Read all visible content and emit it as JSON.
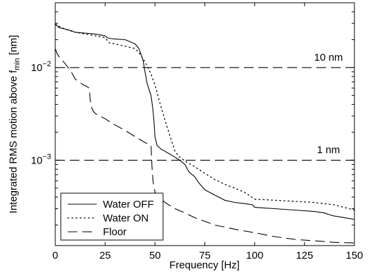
{
  "chart_data": {
    "type": "line",
    "title": "",
    "xlabel": "Frequency [Hz]",
    "ylabel_main": "Integrated RMS motion above f",
    "ylabel_sub": "min",
    "ylabel_unit": " [nm]",
    "x_scale": "linear",
    "y_scale": "log",
    "xlim": [
      0,
      150
    ],
    "ylim": [
      0.00012,
      0.05
    ],
    "x_ticks": [
      0,
      25,
      50,
      75,
      100,
      125,
      150
    ],
    "x_tick_labels": [
      "0",
      "25",
      "50",
      "75",
      "100",
      "125",
      "150"
    ],
    "y_ticks": [
      0.01,
      0.001
    ],
    "y_tick_labels": [
      {
        "base": "10",
        "exp": "−2"
      },
      {
        "base": "10",
        "exp": "−3"
      }
    ],
    "grid": false,
    "legend_position": "bottom-left",
    "series": [
      {
        "name": "Water OFF",
        "style": "solid",
        "x": [
          0,
          1,
          2,
          5,
          8,
          10,
          15,
          20,
          25,
          26,
          28,
          30,
          35,
          40,
          42,
          44,
          45,
          46,
          47,
          48,
          49,
          49.5,
          50,
          51,
          53,
          55,
          57,
          60,
          63,
          65,
          67,
          70,
          72,
          75,
          80,
          85,
          90,
          95,
          99,
          100,
          110,
          120,
          130,
          135,
          137,
          140,
          145,
          150
        ],
        "y": [
          0.03,
          0.028,
          0.027,
          0.026,
          0.025,
          0.024,
          0.0235,
          0.023,
          0.022,
          0.021,
          0.0205,
          0.0203,
          0.02,
          0.018,
          0.016,
          0.012,
          0.009,
          0.0068,
          0.0058,
          0.005,
          0.0035,
          0.0026,
          0.0018,
          0.00145,
          0.00132,
          0.00125,
          0.00118,
          0.00108,
          0.00098,
          0.0009,
          0.00075,
          0.00066,
          0.00057,
          0.00048,
          0.00042,
          0.00037,
          0.00035,
          0.00034,
          0.00033,
          0.00031,
          0.0003,
          0.00029,
          0.00028,
          0.00027,
          0.00026,
          0.00025,
          0.00024,
          0.00023
        ]
      },
      {
        "name": "Water ON",
        "style": "dotted",
        "x": [
          0,
          5,
          10,
          15,
          20,
          25,
          27,
          30,
          35,
          40,
          42,
          44,
          46,
          48,
          50,
          52,
          55,
          58,
          60,
          62,
          65,
          70,
          75,
          80,
          85,
          90,
          95,
          100,
          110,
          120,
          130,
          140,
          150
        ],
        "y": [
          0.029,
          0.026,
          0.024,
          0.023,
          0.022,
          0.021,
          0.0185,
          0.018,
          0.017,
          0.016,
          0.0145,
          0.0125,
          0.0105,
          0.0085,
          0.0065,
          0.0045,
          0.0027,
          0.0017,
          0.00125,
          0.0011,
          0.00098,
          0.00085,
          0.00072,
          0.00062,
          0.00055,
          0.0005,
          0.00045,
          0.00038,
          0.00037,
          0.00036,
          0.00035,
          0.00033,
          0.00029
        ]
      },
      {
        "name": "Floor",
        "style": "dashed",
        "x": [
          0,
          1,
          2,
          5,
          8,
          10,
          14,
          15,
          16,
          17,
          17.5,
          18,
          19,
          20,
          25,
          30,
          35,
          40,
          45,
          48,
          48.5,
          49,
          50,
          52,
          55,
          60,
          65,
          70,
          80,
          90,
          100,
          110,
          120,
          130,
          140,
          150
        ],
        "y": [
          0.016,
          0.014,
          0.013,
          0.011,
          0.009,
          0.0075,
          0.0065,
          0.0064,
          0.0062,
          0.006,
          0.0045,
          0.0038,
          0.0034,
          0.0032,
          0.0028,
          0.0024,
          0.0021,
          0.0018,
          0.00155,
          0.00145,
          0.00085,
          0.0006,
          0.00045,
          0.00041,
          0.00035,
          0.0003,
          0.00027,
          0.00024,
          0.0002,
          0.00018,
          0.000165,
          0.00015,
          0.00014,
          0.000135,
          0.00013,
          0.000128
        ]
      }
    ],
    "annotations": [
      {
        "text": "10 nm",
        "x": 137,
        "y": 0.0115
      },
      {
        "text": "1 nm",
        "x": 137,
        "y": 0.00115
      }
    ],
    "reference_lines": [
      {
        "y": 0.01
      },
      {
        "y": 0.001
      }
    ]
  }
}
